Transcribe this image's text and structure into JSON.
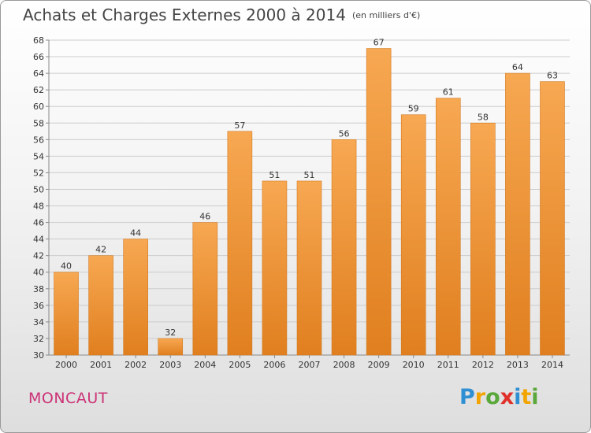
{
  "title": "Achats et Charges Externes 2000 à 2014",
  "unit": "(en milliers d'€)",
  "commune": "MONCAUT",
  "logo": [
    "P",
    "r",
    "o",
    "x",
    "i",
    "t",
    "i"
  ],
  "colors": {
    "bar_light": "#f7a852",
    "bar_dark": "#e07f1f",
    "axis": "#888888",
    "grid": "#cccccc",
    "commune": "#cc3377"
  },
  "chart_data": {
    "type": "bar",
    "categories": [
      "2000",
      "2001",
      "2002",
      "2003",
      "2004",
      "2005",
      "2006",
      "2007",
      "2008",
      "2009",
      "2010",
      "2011",
      "2012",
      "2013",
      "2014"
    ],
    "values": [
      40,
      42,
      44,
      32,
      46,
      57,
      51,
      51,
      56,
      67,
      59,
      61,
      58,
      64,
      63
    ],
    "title": "Achats et Charges Externes 2000 à 2014",
    "xlabel": "",
    "ylabel": "",
    "ylim": [
      30,
      68
    ],
    "ytick_step": 2,
    "grid": true
  }
}
